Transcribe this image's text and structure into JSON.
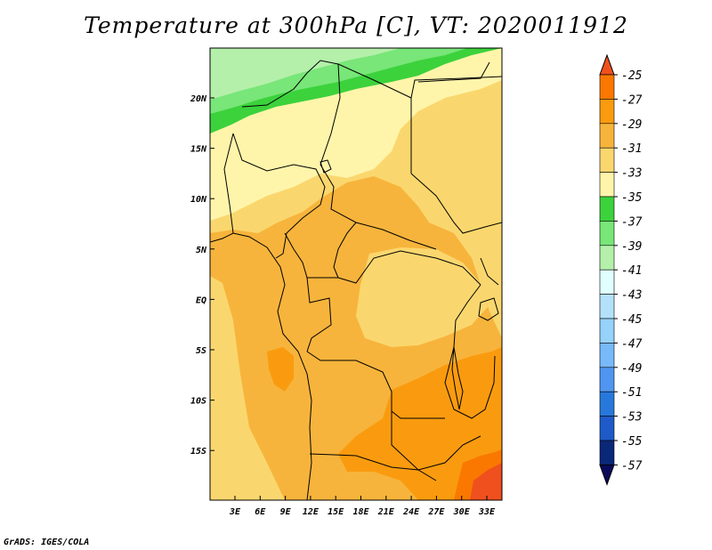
{
  "title": "Temperature at 300hPa [C], VT: 2020011912",
  "footer": "GrADS: IGES/COLA",
  "map": {
    "lon_ticks": [
      "3E",
      "6E",
      "9E",
      "12E",
      "15E",
      "18E",
      "21E",
      "24E",
      "27E",
      "30E",
      "33E"
    ],
    "lat_ticks": [
      "20N",
      "15N",
      "10N",
      "5N",
      "EQ",
      "5S",
      "10S",
      "15S"
    ]
  },
  "colorbar": {
    "labels": [
      "-25",
      "-27",
      "-29",
      "-31",
      "-33",
      "-35",
      "-37",
      "-39",
      "-41",
      "-43",
      "-45",
      "-47",
      "-49",
      "-51",
      "-53",
      "-55",
      "-57"
    ],
    "colors": [
      "#f0501e",
      "#fa7800",
      "#fa9b0f",
      "#f7b43c",
      "#fad76e",
      "#fff5aa",
      "#3cd23c",
      "#78e678",
      "#b4f0aa",
      "#e1ffff",
      "#b4e1fa",
      "#96d2fa",
      "#78b9fa",
      "#5096f0",
      "#2878dc",
      "#1e5ac8",
      "#0a2878",
      "#0a0a5a"
    ]
  },
  "colors": {
    "c_m25": "#f0501e",
    "c_m27": "#fa7800",
    "c_m29": "#fa9b0f",
    "c_m31": "#f7b43c",
    "c_m33": "#fad76e",
    "c_m35": "#fff5aa",
    "c_m37": "#3cd23c",
    "c_m39": "#78e678",
    "c_m41": "#b4f0aa"
  }
}
